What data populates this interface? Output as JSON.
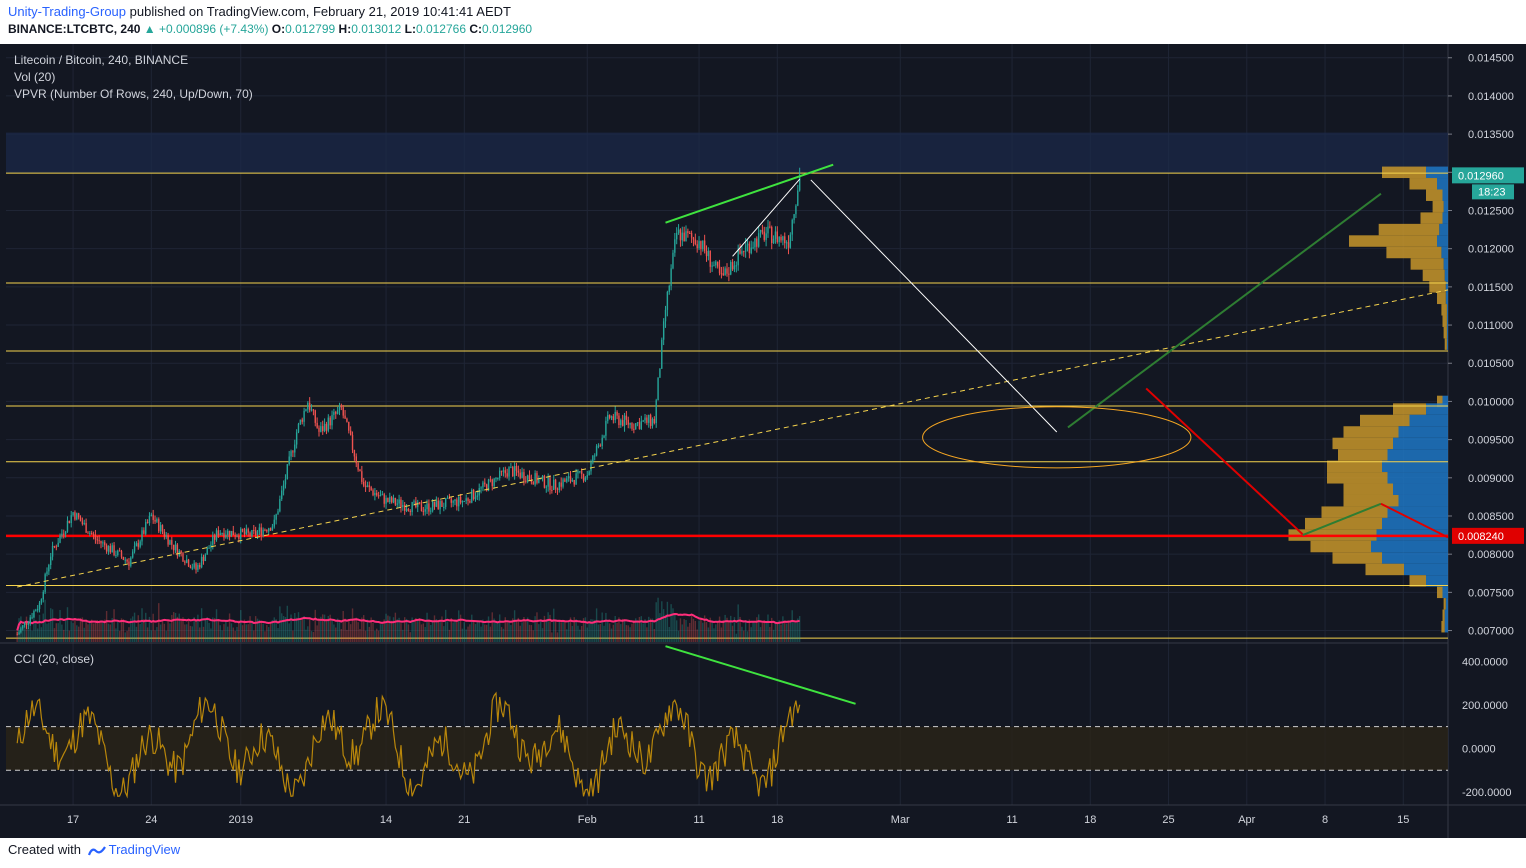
{
  "header": {
    "author": "Unity-Trading-Group",
    "published": "published on TradingView.com, February 21, 2019 10:41:41 AEDT",
    "symbol": "BINANCE:LTCBTC, 240",
    "change": "+0.000896 (+7.43%)",
    "open_label": "O:",
    "open": "0.012799",
    "high_label": "H:",
    "high": "0.013012",
    "low_label": "L:",
    "low": "0.012766",
    "close_label": "C:",
    "close": "0.012960"
  },
  "footer": {
    "created_with": "Created with",
    "brand": "TradingView"
  },
  "colors": {
    "background": "#131722",
    "up": "#26a69a",
    "down": "#ef5350",
    "level_line": "#f5d34d",
    "support_line": "#ff0000",
    "trend_green": "#3fe33f",
    "cci": "#b8860b",
    "volume_ma": "#ff2d7a",
    "vpvr_up": "#1f77c4",
    "vpvr_down": "#c8962a"
  },
  "chart_data": {
    "type": "candlestick",
    "title": "Litecoin / Bitcoin, 240, BINANCE",
    "indicators": [
      "Vol (20)",
      "VPVR (Number Of Rows, 240, Up/Down, 70)"
    ],
    "x_ticks": [
      "17",
      "24",
      "2019",
      "14",
      "21",
      "Feb",
      "11",
      "18",
      "Mar",
      "11",
      "18",
      "25",
      "Apr",
      "8",
      "15"
    ],
    "y_ticks": [
      "0.014500",
      "0.014000",
      "0.013500",
      "0.013000",
      "0.012500",
      "0.012000",
      "0.011500",
      "0.011000",
      "0.010500",
      "0.010000",
      "0.009500",
      "0.009000",
      "0.008500",
      "0.008000",
      "0.007500",
      "0.007000"
    ],
    "ylim": [
      0.00685,
      0.01468
    ],
    "last_price": "0.012960",
    "countdown": "18:23",
    "support_price": "0.008240",
    "levels": [
      0.01299,
      0.01155,
      0.01066,
      0.00994,
      0.00921,
      0.00759,
      0.0069
    ],
    "support": 0.00824,
    "close_path": [
      {
        "date": "2018-12-12",
        "close": 0.00695
      },
      {
        "date": "2018-12-14",
        "close": 0.00735
      },
      {
        "date": "2018-12-15",
        "close": 0.008
      },
      {
        "date": "2018-12-17",
        "close": 0.00855
      },
      {
        "date": "2018-12-19",
        "close": 0.0082
      },
      {
        "date": "2018-12-22",
        "close": 0.0079
      },
      {
        "date": "2018-12-24",
        "close": 0.0085
      },
      {
        "date": "2018-12-26",
        "close": 0.0081
      },
      {
        "date": "2018-12-28",
        "close": 0.0078
      },
      {
        "date": "2018-12-30",
        "close": 0.0083
      },
      {
        "date": "2019-01-02",
        "close": 0.00825
      },
      {
        "date": "2019-01-04",
        "close": 0.0084
      },
      {
        "date": "2019-01-06",
        "close": 0.0096
      },
      {
        "date": "2019-01-07",
        "close": 0.01
      },
      {
        "date": "2019-01-08",
        "close": 0.0096
      },
      {
        "date": "2019-01-10",
        "close": 0.0099
      },
      {
        "date": "2019-01-12",
        "close": 0.0089
      },
      {
        "date": "2019-01-14",
        "close": 0.0087
      },
      {
        "date": "2019-01-17",
        "close": 0.0086
      },
      {
        "date": "2019-01-21",
        "close": 0.0087
      },
      {
        "date": "2019-01-25",
        "close": 0.0091
      },
      {
        "date": "2019-01-29",
        "close": 0.0089
      },
      {
        "date": "2019-02-01",
        "close": 0.00905
      },
      {
        "date": "2019-02-03",
        "close": 0.0098
      },
      {
        "date": "2019-02-05",
        "close": 0.0097
      },
      {
        "date": "2019-02-07",
        "close": 0.00975
      },
      {
        "date": "2019-02-08",
        "close": 0.0112
      },
      {
        "date": "2019-02-09",
        "close": 0.0122
      },
      {
        "date": "2019-02-11",
        "close": 0.0121
      },
      {
        "date": "2019-02-13",
        "close": 0.0116
      },
      {
        "date": "2019-02-15",
        "close": 0.012
      },
      {
        "date": "2019-02-17",
        "close": 0.0122
      },
      {
        "date": "2019-02-19",
        "close": 0.0121
      },
      {
        "date": "2019-02-20",
        "close": 0.01296
      }
    ],
    "cci": {
      "label": "CCI (20, close)",
      "y_ticks": [
        "400.0000",
        "200.0000",
        "0.0000",
        "-200.0000"
      ],
      "ylim": [
        -260,
        480
      ],
      "bands": [
        100,
        -100
      ]
    }
  }
}
